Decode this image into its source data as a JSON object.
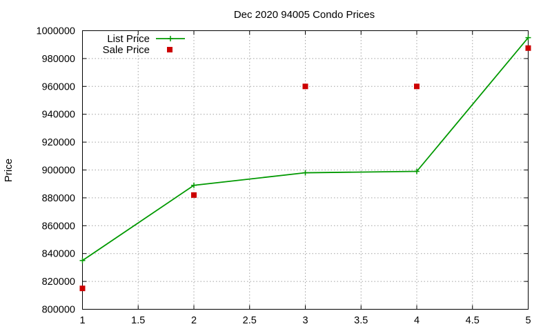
{
  "chart_data": {
    "type": "line",
    "title": "Dec 2020 94005 Condo Prices",
    "xlabel": "",
    "ylabel": "Price",
    "xlim": [
      1,
      5
    ],
    "ylim": [
      800000,
      1000000
    ],
    "x_ticks": [
      "1",
      "1.5",
      "2",
      "2.5",
      "3",
      "3.5",
      "4",
      "4.5",
      "5"
    ],
    "y_ticks": [
      "800000",
      "820000",
      "840000",
      "860000",
      "880000",
      "900000",
      "920000",
      "940000",
      "960000",
      "980000",
      "1000000"
    ],
    "grid": true,
    "legend_position": "top-left",
    "series": [
      {
        "name": "List Price",
        "style": "line+points",
        "color": "#009900",
        "x": [
          1,
          2,
          3,
          4,
          5
        ],
        "y": [
          835000,
          889000,
          898000,
          899000,
          995000
        ]
      },
      {
        "name": "Sale Price",
        "style": "points",
        "color": "#cc0000",
        "x": [
          1,
          2,
          3,
          4,
          5
        ],
        "y": [
          815000,
          882000,
          960000,
          960000,
          987500
        ]
      }
    ]
  }
}
